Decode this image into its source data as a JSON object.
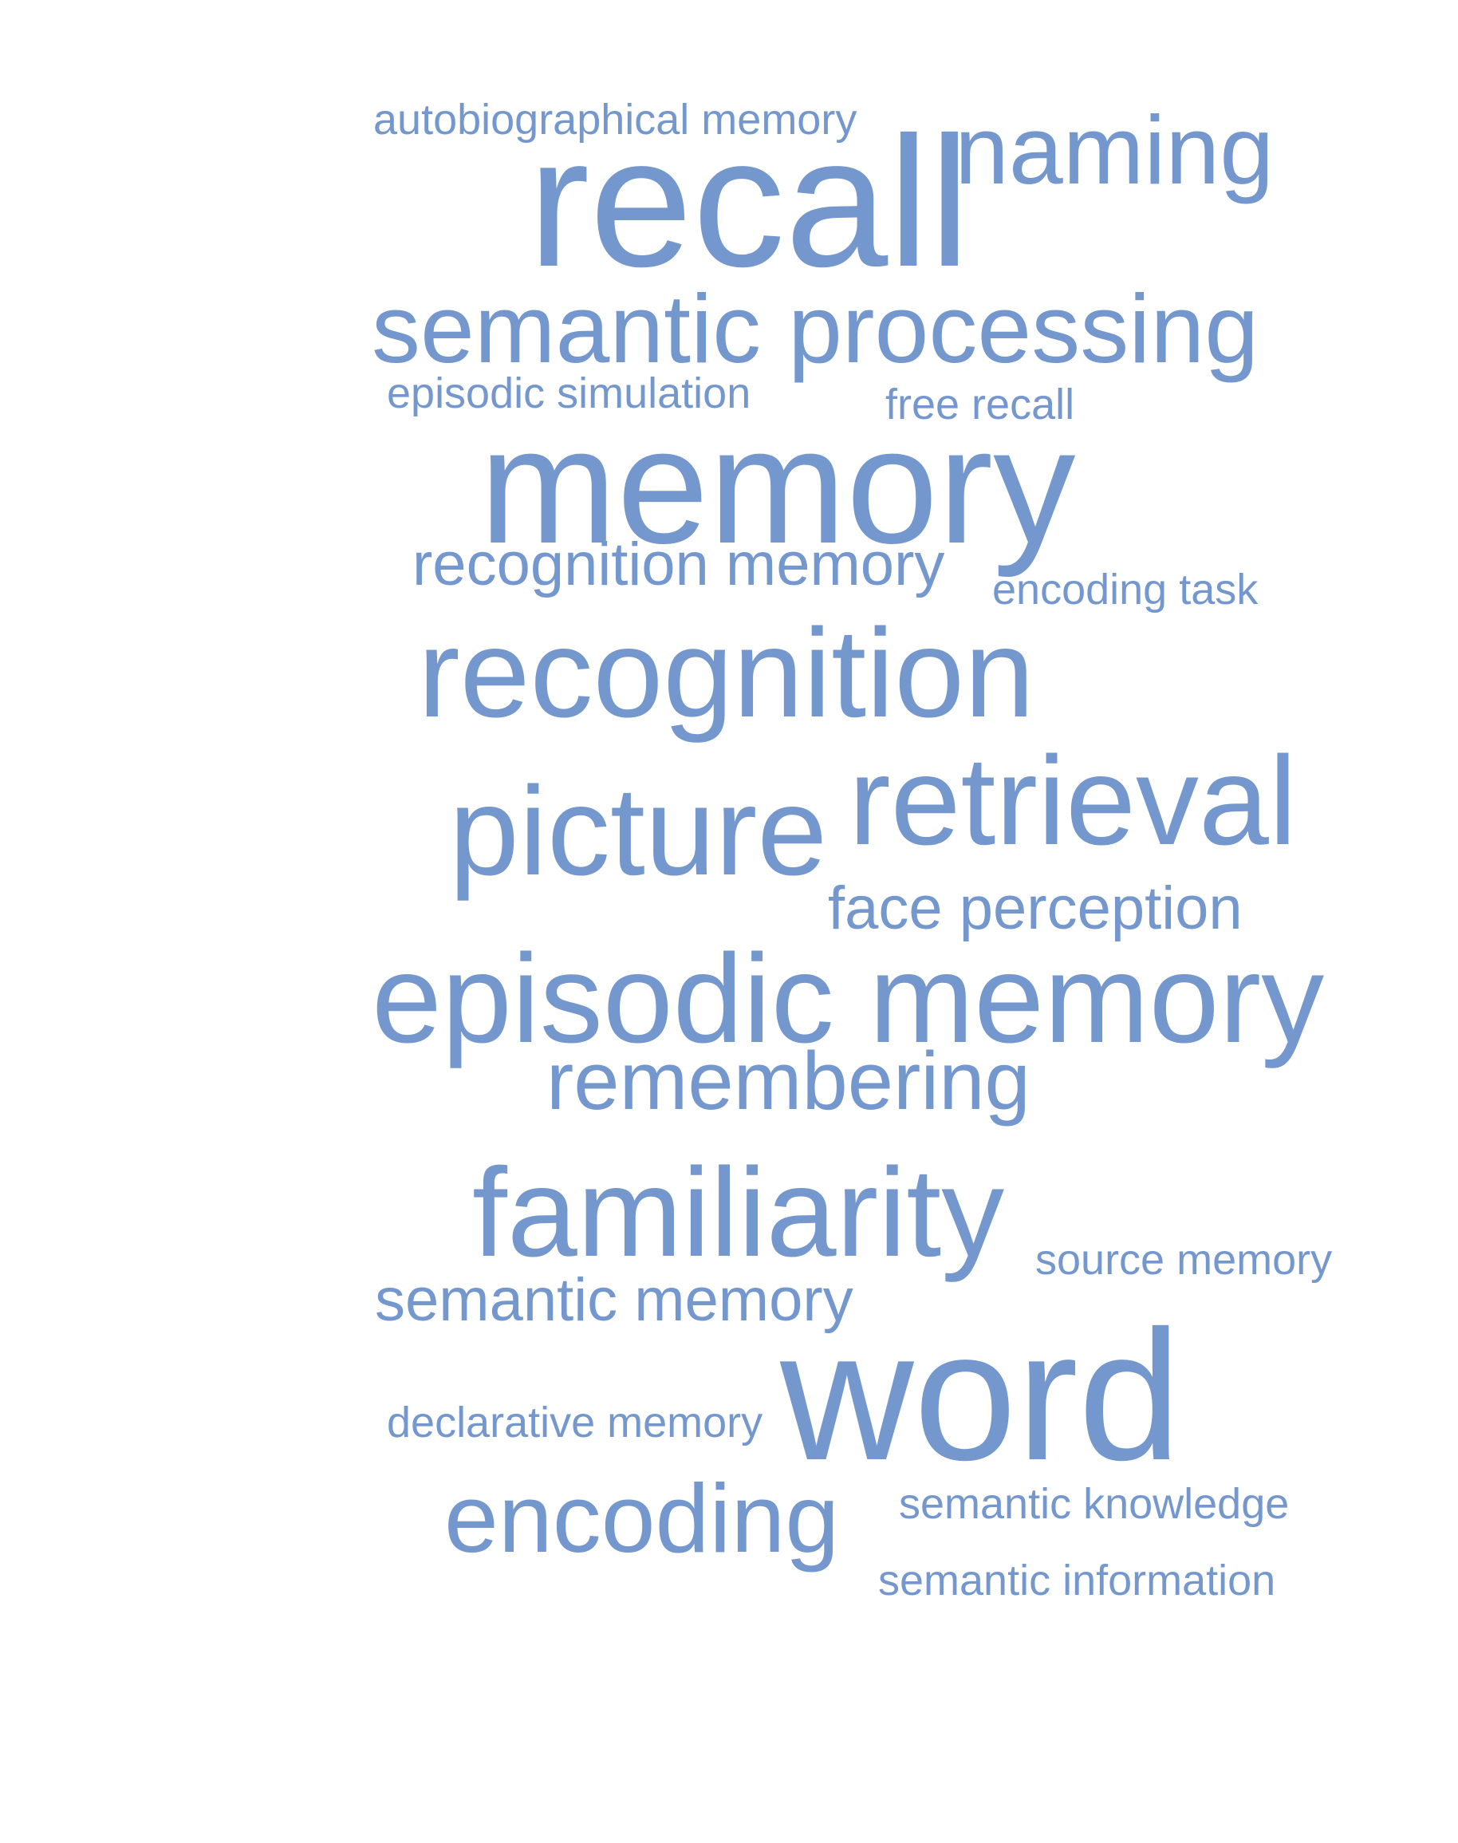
{
  "style": {
    "word_color": "#7497CE",
    "background": "#FFFFFF"
  },
  "words": [
    {
      "text": "autobiographical memory"
    },
    {
      "text": "recall"
    },
    {
      "text": "naming"
    },
    {
      "text": "semantic processing"
    },
    {
      "text": "episodic simulation"
    },
    {
      "text": "free recall"
    },
    {
      "text": "memory"
    },
    {
      "text": "recognition memory"
    },
    {
      "text": "encoding task"
    },
    {
      "text": "recognition"
    },
    {
      "text": "picture"
    },
    {
      "text": "retrieval"
    },
    {
      "text": "face perception"
    },
    {
      "text": "episodic memory"
    },
    {
      "text": "remembering"
    },
    {
      "text": "familiarity"
    },
    {
      "text": "source memory"
    },
    {
      "text": "semantic memory"
    },
    {
      "text": "declarative memory"
    },
    {
      "text": "word"
    },
    {
      "text": "encoding"
    },
    {
      "text": "semantic knowledge"
    },
    {
      "text": "semantic information"
    }
  ]
}
